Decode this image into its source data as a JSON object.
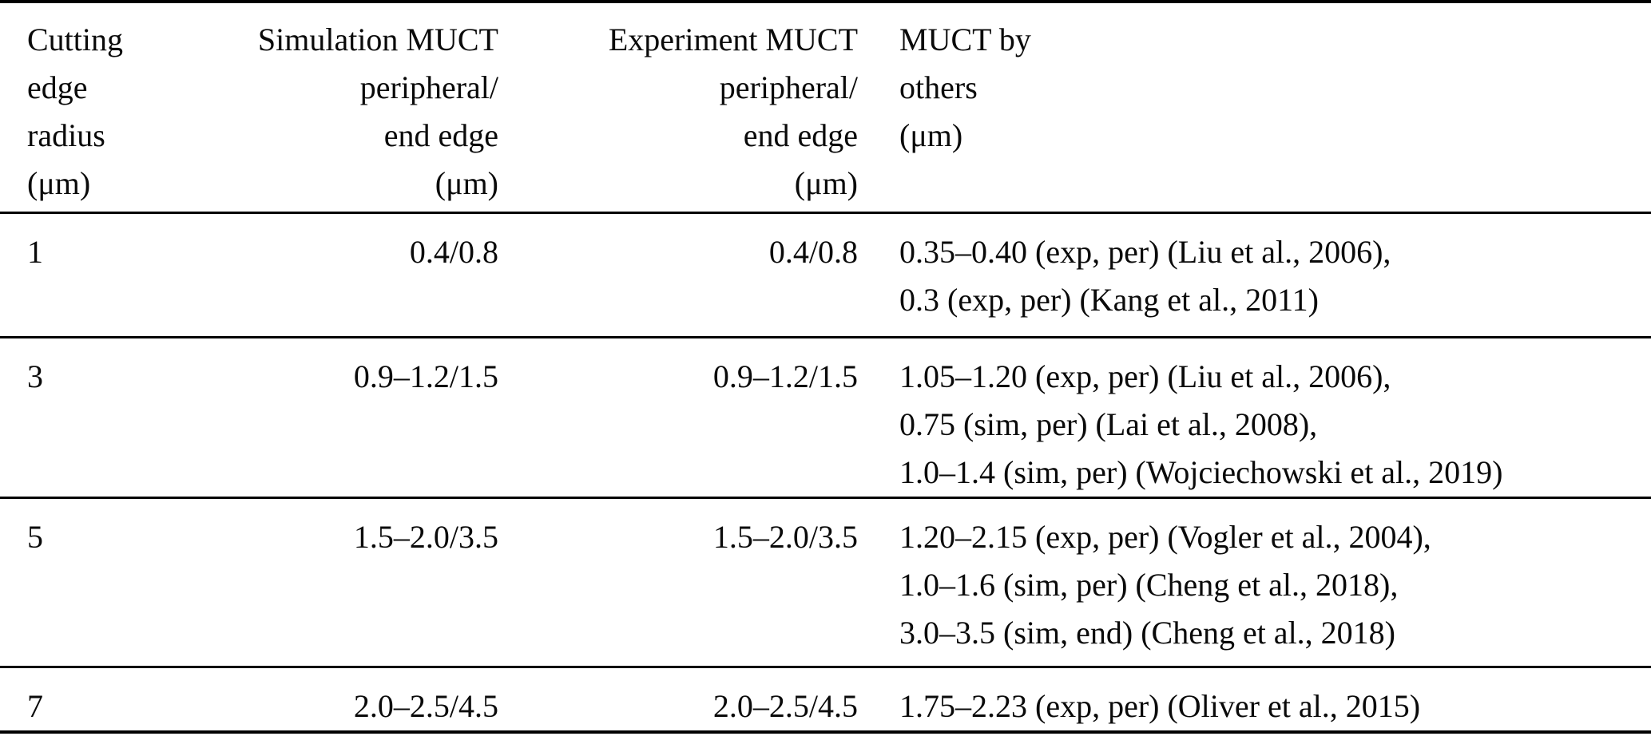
{
  "colors": {
    "text": "#0a0a0a",
    "rule": "#000000",
    "background": "#ffffff"
  },
  "table": {
    "columns": [
      {
        "id": "cutting_edge_radius",
        "align": "left",
        "label_lines": [
          "Cutting",
          "edge",
          "radius",
          "(μm)"
        ]
      },
      {
        "id": "simulation_muct",
        "align": "right",
        "label_lines": [
          "Simulation MUCT",
          "peripheral/",
          "end edge",
          "(μm)"
        ]
      },
      {
        "id": "experiment_muct",
        "align": "right",
        "label_lines": [
          "Experiment MUCT",
          "peripheral/",
          "end edge",
          "(μm)"
        ]
      },
      {
        "id": "muct_by_others",
        "align": "left",
        "label_lines": [
          "MUCT by",
          "others",
          "(μm)"
        ]
      }
    ],
    "rows": [
      {
        "radius": "1",
        "simulation": "0.4/0.8",
        "experiment": "0.4/0.8",
        "others_lines": [
          "0.35–0.40 (exp, per) (Liu et al., 2006),",
          "0.3 (exp, per) (Kang et al., 2011)"
        ]
      },
      {
        "radius": "3",
        "simulation": "0.9–1.2/1.5",
        "experiment": "0.9–1.2/1.5",
        "others_lines": [
          "1.05–1.20 (exp, per) (Liu et al., 2006),",
          "0.75 (sim, per) (Lai et al., 2008),",
          "1.0–1.4 (sim, per) (Wojciechowski et al., 2019)"
        ]
      },
      {
        "radius": "5",
        "simulation": "1.5–2.0/3.5",
        "experiment": "1.5–2.0/3.5",
        "others_lines": [
          "1.20–2.15 (exp, per) (Vogler et al., 2004),",
          "1.0–1.6 (sim, per) (Cheng et al., 2018),",
          "3.0–3.5 (sim, end) (Cheng et al., 2018)"
        ]
      },
      {
        "radius": "7",
        "simulation": "2.0–2.5/4.5",
        "experiment": "2.0–2.5/4.5",
        "others_lines": [
          "1.75–2.23 (exp, per) (Oliver et al., 2015)"
        ]
      }
    ]
  },
  "chart_data": {
    "type": "table",
    "title": "",
    "column_headers": [
      "Cutting edge radius (μm)",
      "Simulation MUCT peripheral/end edge (μm)",
      "Experiment MUCT peripheral/end edge (μm)",
      "MUCT by others (μm)"
    ],
    "rows": [
      [
        "1",
        "0.4/0.8",
        "0.4/0.8",
        "0.35–0.40 (exp, per) (Liu et al., 2006), 0.3 (exp, per) (Kang et al., 2011)"
      ],
      [
        "3",
        "0.9–1.2/1.5",
        "0.9–1.2/1.5",
        "1.05–1.20 (exp, per) (Liu et al., 2006), 0.75 (sim, per) (Lai et al., 2008), 1.0–1.4 (sim, per) (Wojciechowski et al., 2019)"
      ],
      [
        "5",
        "1.5–2.0/3.5",
        "1.5–2.0/3.5",
        "1.20–2.15 (exp, per) (Vogler et al., 2004), 1.0–1.6 (sim, per) (Cheng et al., 2018), 3.0–3.5 (sim, end) (Cheng et al., 2018)"
      ],
      [
        "7",
        "2.0–2.5/4.5",
        "2.0–2.5/4.5",
        "1.75–2.23 (exp, per) (Oliver et al., 2015)"
      ]
    ]
  }
}
